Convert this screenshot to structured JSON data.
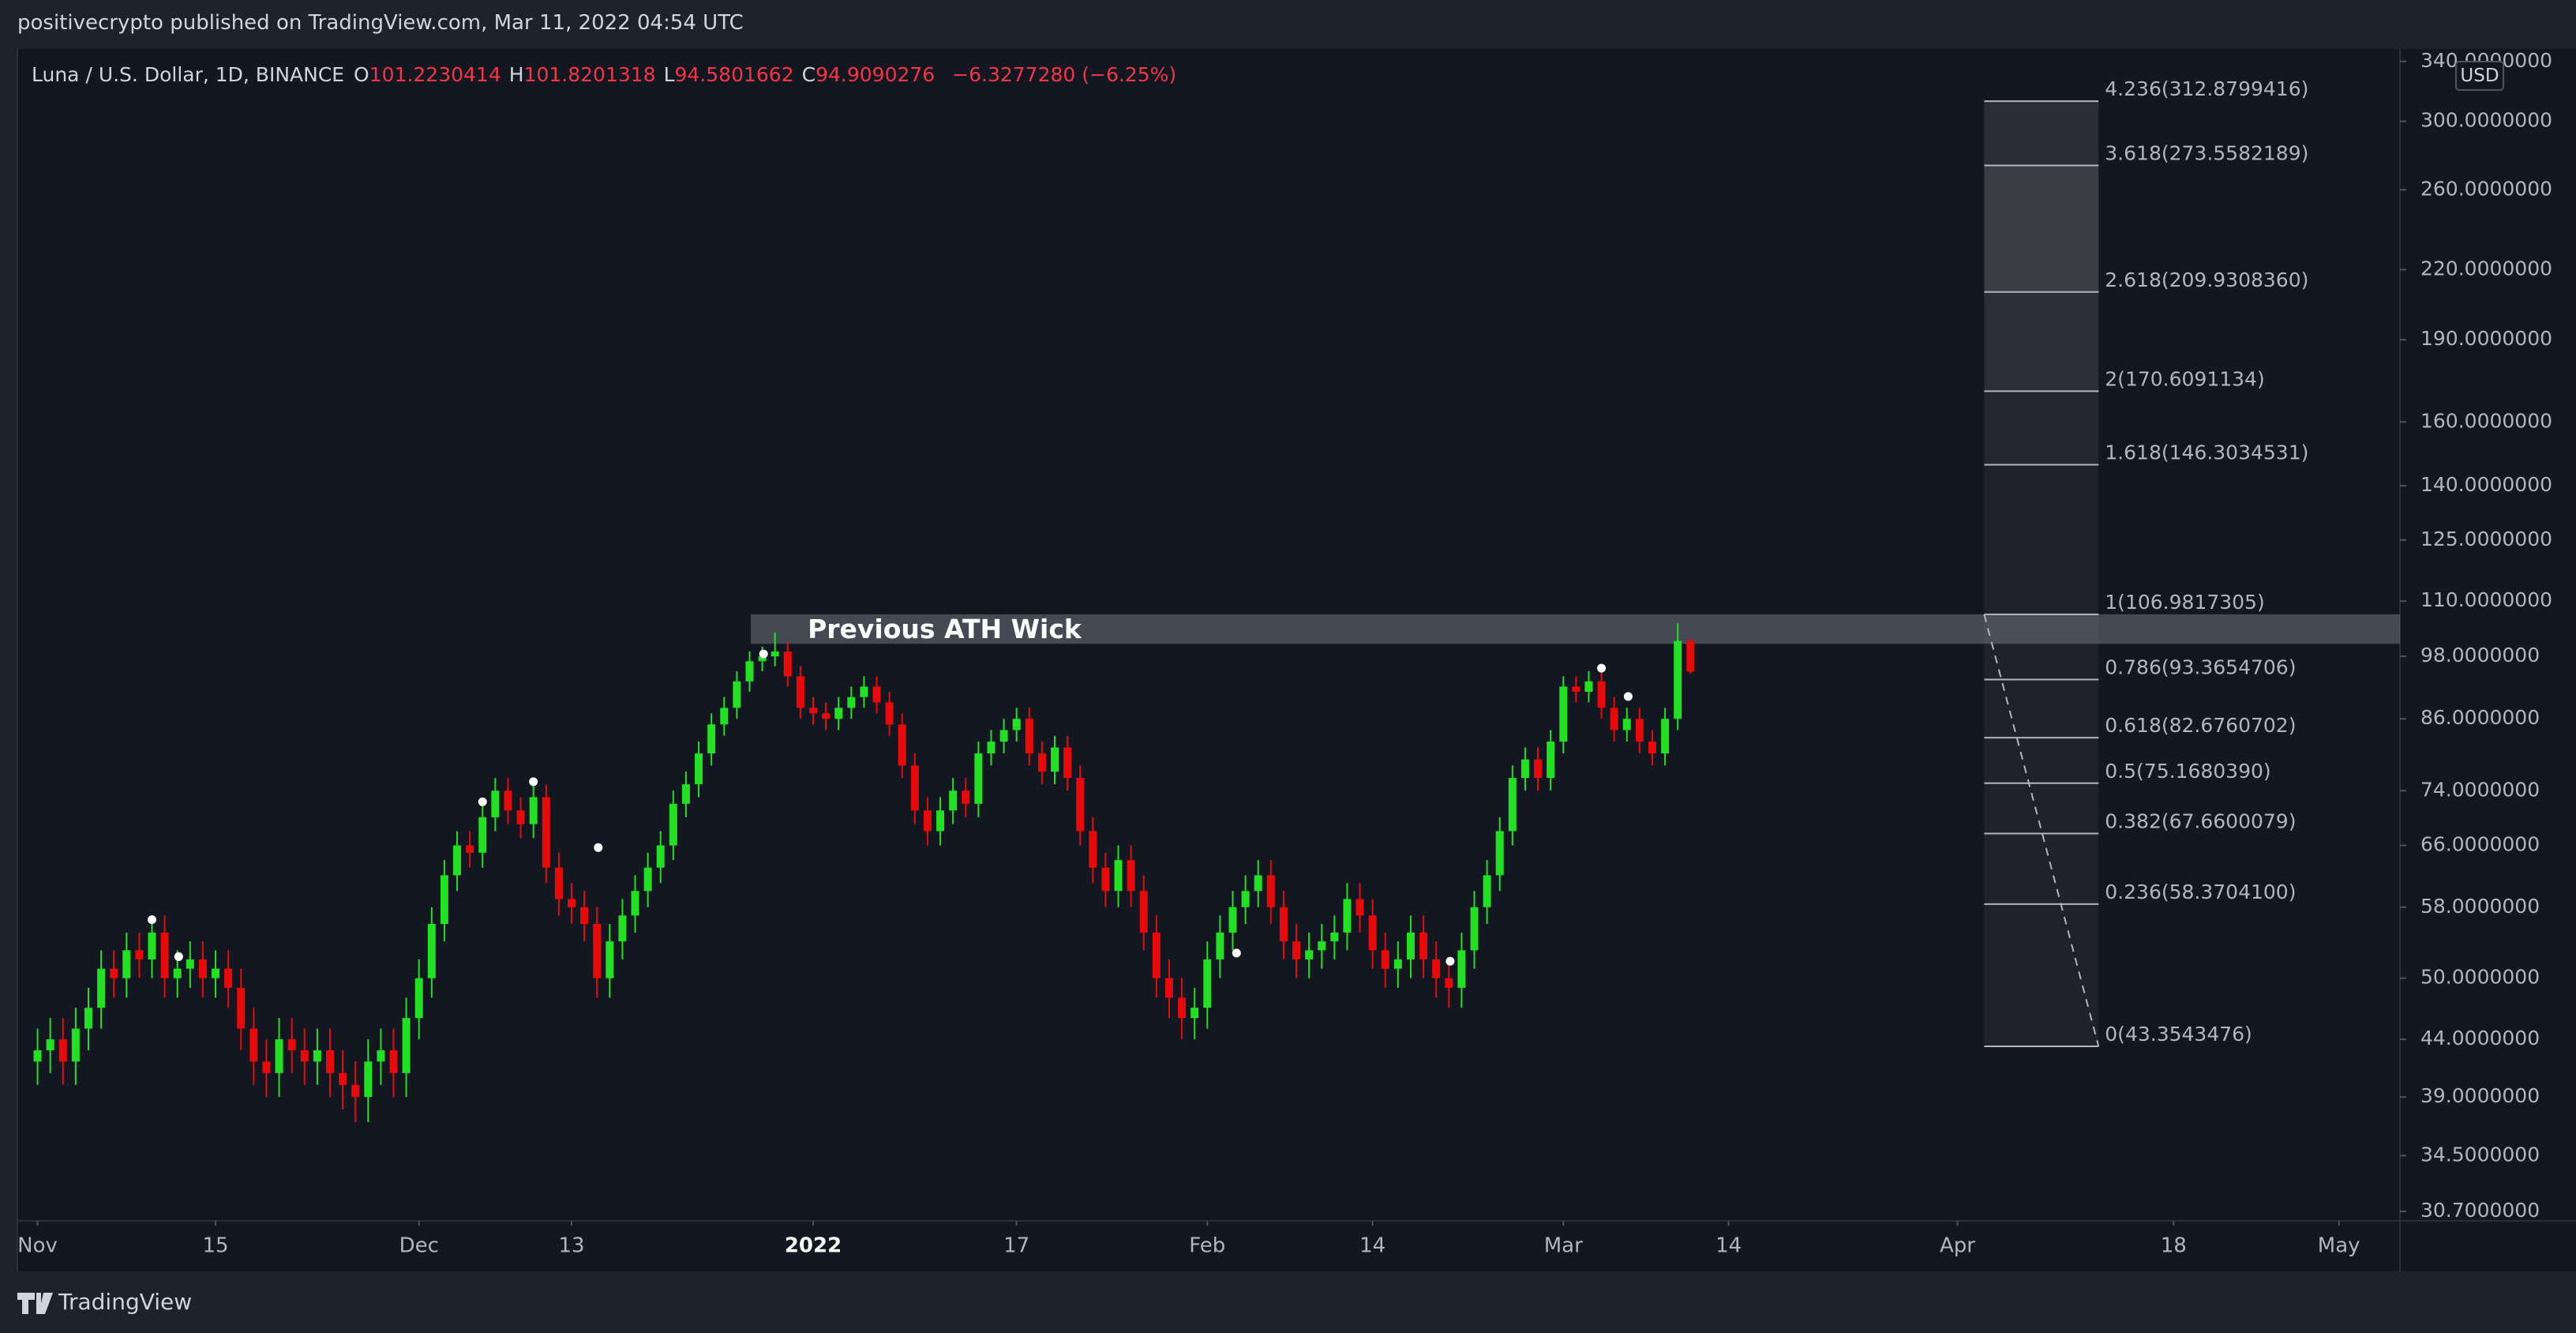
{
  "header": {
    "publisher": "positivecrypto published on TradingView.com, Mar 11, 2022 04:54 UTC",
    "symbol": "Luna / U.S. Dollar, 1D, BINANCE",
    "ohlc": [
      {
        "key": "O",
        "value": "101.2230414"
      },
      {
        "key": "H",
        "value": "101.8201318"
      },
      {
        "key": "L",
        "value": "94.5801662"
      },
      {
        "key": "C",
        "value": "94.9090276"
      }
    ],
    "change": "−6.3277280 (−6.25%)",
    "currency": "USD"
  },
  "footer": {
    "brand": "TradingView"
  },
  "chart_data": {
    "type": "candlestick",
    "log_scale": true,
    "grid": false,
    "up_color": "#22e022",
    "down_color": "#e80a0a",
    "xlim": [
      -1.4,
      185.8
    ],
    "ylim": [
      30.1,
      349
    ],
    "xticks": [
      {
        "value": 0,
        "label": "Nov"
      },
      {
        "value": 14,
        "label": "15"
      },
      {
        "value": 30,
        "label": "Dec"
      },
      {
        "value": 42,
        "label": "13"
      },
      {
        "value": 61,
        "label": "2022"
      },
      {
        "value": 77,
        "label": "17"
      },
      {
        "value": 92,
        "label": "Feb"
      },
      {
        "value": 105,
        "label": "14"
      },
      {
        "value": 120,
        "label": "Mar"
      },
      {
        "value": 133,
        "label": "14"
      },
      {
        "value": 151,
        "label": "Apr"
      },
      {
        "value": 168,
        "label": "18"
      },
      {
        "value": 181,
        "label": "May"
      }
    ],
    "yticks": [
      {
        "value": 340,
        "label": "340.0000000"
      },
      {
        "value": 300,
        "label": "300.0000000"
      },
      {
        "value": 260,
        "label": "260.0000000"
      },
      {
        "value": 220,
        "label": "220.0000000"
      },
      {
        "value": 190,
        "label": "190.0000000"
      },
      {
        "value": 160,
        "label": "160.0000000"
      },
      {
        "value": 140,
        "label": "140.0000000"
      },
      {
        "value": 125,
        "label": "125.0000000"
      },
      {
        "value": 110,
        "label": "110.0000000"
      },
      {
        "value": 98,
        "label": "98.0000000"
      },
      {
        "value": 86,
        "label": "86.0000000"
      },
      {
        "value": 74,
        "label": "74.0000000"
      },
      {
        "value": 66,
        "label": "66.0000000"
      },
      {
        "value": 58,
        "label": "58.0000000"
      },
      {
        "value": 50,
        "label": "50.0000000"
      },
      {
        "value": 44,
        "label": "44.0000000"
      },
      {
        "value": 39,
        "label": "39.0000000"
      },
      {
        "value": 34.5,
        "label": "34.5000000"
      },
      {
        "value": 30.7,
        "label": "30.7000000"
      }
    ],
    "x": [
      0,
      1,
      2,
      3,
      4,
      5,
      6,
      7,
      8,
      9,
      10,
      11,
      12,
      13,
      14,
      15,
      16,
      17,
      18,
      19,
      20,
      21,
      22,
      23,
      24,
      25,
      26,
      27,
      28,
      29,
      30,
      31,
      32,
      33,
      34,
      35,
      36,
      37,
      38,
      39,
      40,
      41,
      42,
      43,
      44,
      45,
      46,
      47,
      48,
      49,
      50,
      51,
      52,
      53,
      54,
      55,
      56,
      57,
      58,
      59,
      60,
      61,
      62,
      63,
      64,
      65,
      66,
      67,
      68,
      69,
      70,
      71,
      72,
      73,
      74,
      75,
      76,
      77,
      78,
      79,
      80,
      81,
      82,
      83,
      84,
      85,
      86,
      87,
      88,
      89,
      90,
      91,
      92,
      93,
      94,
      95,
      96,
      97,
      98,
      99,
      100,
      101,
      102,
      103,
      104,
      105,
      106,
      107,
      108,
      109,
      110,
      111,
      112,
      113,
      114,
      115,
      116,
      117,
      118,
      119,
      120,
      121,
      122,
      123,
      124,
      125,
      126,
      127,
      128,
      129,
      130
    ],
    "open": [
      42,
      43,
      44,
      42,
      45,
      47,
      51,
      50,
      53,
      52,
      55,
      50,
      51,
      52,
      50,
      51,
      49,
      45,
      42,
      41,
      44,
      43,
      42,
      43,
      41,
      40,
      39,
      42,
      43,
      41,
      46,
      50,
      56,
      62,
      66,
      65,
      70,
      74,
      71,
      69,
      73,
      63,
      59,
      58,
      56,
      50,
      54,
      57,
      60,
      63,
      66,
      72,
      75,
      80,
      85,
      88,
      93,
      97,
      98,
      99,
      94,
      88,
      87,
      86,
      88,
      90,
      92,
      89,
      85,
      78,
      71,
      68,
      71,
      74,
      72,
      80,
      82,
      84,
      86,
      80,
      77,
      81,
      76,
      68,
      63,
      60,
      64,
      60,
      55,
      50,
      48,
      46,
      47,
      52,
      55,
      58,
      60,
      62,
      58,
      54,
      52,
      53,
      54,
      55,
      59,
      57,
      53,
      51,
      52,
      55,
      52,
      50,
      49,
      53,
      58,
      62,
      68,
      76,
      79,
      76,
      82,
      92,
      91,
      93,
      88,
      84,
      86,
      82,
      80,
      86,
      101.22
    ],
    "high": [
      45,
      46,
      46,
      47,
      49,
      53,
      53,
      55,
      55,
      57,
      57,
      53,
      54,
      54,
      53,
      53,
      51,
      47,
      44,
      46,
      46,
      45,
      45,
      45,
      43,
      42,
      44,
      45,
      45,
      48,
      52,
      58,
      64,
      68,
      68,
      72,
      76,
      76,
      73,
      75,
      75,
      65,
      61,
      60,
      58,
      56,
      59,
      62,
      65,
      68,
      74,
      77,
      82,
      87,
      90,
      95,
      99,
      100,
      103,
      101,
      96,
      90,
      89,
      90,
      92,
      94,
      94,
      91,
      87,
      80,
      73,
      73,
      76,
      76,
      82,
      84,
      86,
      88,
      88,
      82,
      83,
      83,
      78,
      70,
      65,
      66,
      66,
      62,
      57,
      52,
      50,
      49,
      54,
      57,
      60,
      62,
      64,
      64,
      60,
      56,
      55,
      56,
      57,
      61,
      61,
      59,
      55,
      54,
      57,
      57,
      54,
      52,
      55,
      60,
      64,
      70,
      78,
      81,
      81,
      84,
      94,
      94,
      95,
      95,
      90,
      88,
      88,
      84,
      88,
      105,
      101.82
    ],
    "low": [
      40,
      41,
      40,
      40,
      43,
      45,
      48,
      48,
      50,
      50,
      48,
      48,
      49,
      48,
      48,
      47,
      43,
      40,
      39,
      39,
      41,
      40,
      40,
      39,
      38,
      37,
      37,
      40,
      39,
      39,
      44,
      48,
      54,
      60,
      63,
      63,
      68,
      69,
      67,
      67,
      61,
      57,
      56,
      54,
      48,
      48,
      52,
      55,
      58,
      61,
      64,
      70,
      73,
      78,
      83,
      86,
      91,
      95,
      96,
      92,
      86,
      85,
      84,
      84,
      86,
      88,
      87,
      83,
      76,
      69,
      66,
      66,
      69,
      70,
      70,
      78,
      80,
      82,
      78,
      75,
      75,
      74,
      66,
      61,
      58,
      58,
      58,
      53,
      48,
      46,
      44,
      44,
      45,
      50,
      53,
      56,
      58,
      56,
      52,
      50,
      50,
      51,
      52,
      53,
      55,
      51,
      49,
      49,
      50,
      50,
      48,
      47,
      47,
      51,
      56,
      60,
      66,
      74,
      74,
      74,
      80,
      89,
      89,
      86,
      82,
      82,
      80,
      78,
      78,
      84,
      94.58
    ],
    "close": [
      43,
      44,
      42,
      45,
      47,
      51,
      50,
      53,
      52,
      55,
      50,
      51,
      52,
      50,
      51,
      49,
      45,
      42,
      41,
      44,
      43,
      42,
      43,
      41,
      40,
      39,
      42,
      43,
      41,
      46,
      50,
      56,
      62,
      66,
      65,
      70,
      74,
      71,
      69,
      73,
      63,
      59,
      58,
      56,
      50,
      54,
      57,
      60,
      63,
      66,
      72,
      75,
      80,
      85,
      88,
      93,
      97,
      98,
      99,
      94,
      88,
      87,
      86,
      88,
      90,
      92,
      89,
      85,
      78,
      71,
      68,
      71,
      74,
      72,
      80,
      82,
      84,
      86,
      80,
      77,
      81,
      76,
      68,
      63,
      60,
      64,
      60,
      55,
      50,
      48,
      46,
      47,
      52,
      55,
      58,
      60,
      62,
      58,
      54,
      52,
      53,
      54,
      55,
      59,
      57,
      53,
      51,
      52,
      55,
      52,
      50,
      49,
      53,
      58,
      62,
      68,
      76,
      79,
      76,
      82,
      92,
      91,
      93,
      88,
      84,
      86,
      82,
      80,
      86,
      101.2,
      94.91
    ],
    "dots": {
      "color": "#ffffff",
      "x": [
        9.0,
        11.1,
        35.0,
        39.0,
        44.1,
        57.1,
        94.3,
        111.1,
        123.0,
        125.1
      ],
      "y": [
        56.5,
        52.3,
        72.3,
        75.4,
        65.7,
        98.5,
        52.7,
        51.8,
        95.6,
        90.1
      ]
    },
    "zone": {
      "label": "Previous ATH Wick",
      "from": 56.1,
      "top": 107.0,
      "bottom": 100.6
    },
    "fib": {
      "from": 153.1,
      "to": 162.1,
      "levels": [
        {
          "value": 312.8799416,
          "label": "4.236(312.8799416)"
        },
        {
          "value": 273.5582189,
          "label": "3.618(273.5582189)"
        },
        {
          "value": 209.930836,
          "label": "2.618(209.9308360)"
        },
        {
          "value": 170.6091134,
          "label": "2(170.6091134)"
        },
        {
          "value": 146.3034531,
          "label": "1.618(146.3034531)"
        },
        {
          "value": 106.9817305,
          "label": "1(106.9817305)"
        },
        {
          "value": 93.3654706,
          "label": "0.786(93.3654706)"
        },
        {
          "value": 82.6760702,
          "label": "0.618(82.6760702)"
        },
        {
          "value": 75.168039,
          "label": "0.5(75.1680390)"
        },
        {
          "value": 67.6600079,
          "label": "0.382(67.6600079)"
        },
        {
          "value": 58.37041,
          "label": "0.236(58.3704100)"
        },
        {
          "value": 43.3543476,
          "label": "0(43.3543476)"
        }
      ],
      "fill_colors": [
        "#2a2d35",
        "#3c3e45",
        "#2b2e36",
        "#23262e",
        "#1f222a",
        "#1f222a",
        "#1f222a",
        "#1f222a",
        "#1f222a",
        "#1f222a",
        "#1f222a"
      ]
    }
  }
}
